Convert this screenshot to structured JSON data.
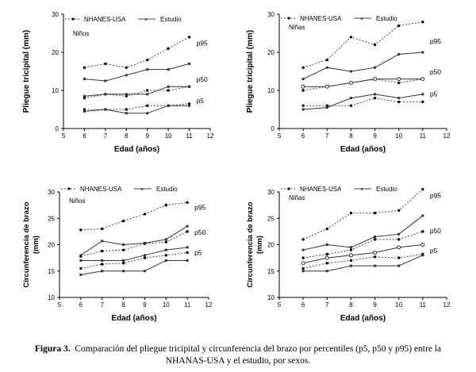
{
  "figure_caption": {
    "label": "Figura 3.",
    "text": "Comparación del pliegue tricipital y circunferencia del brazo por percentiles (p5, p50 y p95) entre la NHANAS-USA y el estudio, por sexos."
  },
  "chart_data": [
    {
      "type": "line",
      "group_label": "Niños",
      "ylabel": "Pliegue tricipital (mm)",
      "xlabel": "Edad (años)",
      "xlim": [
        5,
        12
      ],
      "ylim": [
        0,
        30
      ],
      "xticks": [
        "5",
        "6",
        "7",
        "8",
        "9",
        "10",
        "11",
        "12"
      ],
      "yticks": [
        "0",
        "10",
        "20",
        "30"
      ],
      "legend": [
        "NHANES-USA",
        "Estudio"
      ],
      "percentile_labels": [
        "p95",
        "p50",
        "p5"
      ],
      "x": [
        6,
        7,
        8,
        9,
        10,
        11
      ],
      "series": [
        {
          "name": "NHANES-USA",
          "percentile": "p95",
          "values": [
            16,
            17,
            16,
            18,
            21,
            24
          ]
        },
        {
          "name": "NHANES-USA",
          "percentile": "p50",
          "values": [
            8,
            9,
            8.5,
            10,
            10,
            11
          ]
        },
        {
          "name": "NHANES-USA",
          "percentile": "p5",
          "values": [
            5,
            5,
            5,
            6,
            6,
            6.5
          ]
        },
        {
          "name": "Estudio",
          "percentile": "p95",
          "values": [
            13,
            12.5,
            14,
            15.5,
            15.5,
            17
          ]
        },
        {
          "name": "Estudio",
          "percentile": "p50",
          "values": [
            8.5,
            9,
            9,
            9,
            11,
            11
          ]
        },
        {
          "name": "Estudio",
          "percentile": "p5",
          "values": [
            4.5,
            5,
            4,
            4,
            6,
            6
          ]
        }
      ]
    },
    {
      "type": "line",
      "group_label": "Niñas",
      "ylabel": "Pliegue tricipital (mm)",
      "xlabel": "Edad (años)",
      "xlim": [
        5,
        12
      ],
      "ylim": [
        0,
        30
      ],
      "xticks": [
        "5",
        "6",
        "7",
        "8",
        "9",
        "10",
        "11",
        "12"
      ],
      "yticks": [
        "0",
        "10",
        "20",
        "30"
      ],
      "legend": [
        "NHANES-USA",
        "Estudio"
      ],
      "percentile_labels": [
        "p95",
        "p50",
        "p5"
      ],
      "x": [
        6,
        7,
        8,
        9,
        10,
        11
      ],
      "series": [
        {
          "name": "NHANES-USA",
          "percentile": "p95",
          "values": [
            16,
            18,
            24,
            22,
            27,
            28
          ]
        },
        {
          "name": "NHANES-USA",
          "percentile": "p50",
          "values": [
            10,
            11,
            12,
            13,
            12,
            13
          ]
        },
        {
          "name": "NHANES-USA",
          "percentile": "p5",
          "values": [
            6,
            6,
            6,
            8,
            7,
            7
          ]
        },
        {
          "name": "Estudio",
          "percentile": "p95",
          "values": [
            13,
            16,
            15,
            16,
            19.5,
            20
          ]
        },
        {
          "name": "Estudio",
          "percentile": "p50",
          "values": [
            11,
            11,
            12,
            13,
            13,
            13
          ]
        },
        {
          "name": "Estudio",
          "percentile": "p5",
          "values": [
            5,
            5.5,
            8,
            9,
            8,
            9
          ]
        }
      ]
    },
    {
      "type": "line",
      "group_label": "Niños",
      "ylabel": "Circunferencia de brazo (mm)",
      "xlabel": "Edad (años)",
      "xlim": [
        5,
        12
      ],
      "ylim": [
        10,
        30
      ],
      "xticks": [
        "5",
        "6",
        "7",
        "8",
        "9",
        "10",
        "11",
        "12"
      ],
      "yticks": [
        "10",
        "15",
        "20",
        "25",
        "30"
      ],
      "legend": [
        "NHANES-USA",
        "Estudio"
      ],
      "percentile_labels": [
        "p95",
        "p50",
        "p5"
      ],
      "x": [
        6,
        7,
        8,
        9,
        10,
        11
      ],
      "series": [
        {
          "name": "NHANES-USA",
          "percentile": "p95",
          "values": [
            22.8,
            23,
            24.5,
            25.8,
            27.5,
            28
          ]
        },
        {
          "name": "NHANES-USA",
          "percentile": "p50",
          "values": [
            17.8,
            18.8,
            19,
            20.2,
            20.5,
            22.5
          ]
        },
        {
          "name": "NHANES-USA",
          "percentile": "p5",
          "values": [
            15.5,
            16.3,
            16.5,
            17.5,
            18,
            18.5
          ]
        },
        {
          "name": "Estudio",
          "percentile": "p95",
          "values": [
            18,
            20.7,
            20,
            20.3,
            21,
            23.5
          ]
        },
        {
          "name": "Estudio",
          "percentile": "p50",
          "values": [
            17,
            17,
            17,
            18,
            19,
            19.5
          ]
        },
        {
          "name": "Estudio",
          "percentile": "p5",
          "values": [
            14.3,
            15,
            15,
            15,
            17,
            17
          ]
        }
      ]
    },
    {
      "type": "line",
      "group_label": "Niñas",
      "ylabel": "Circunferencia de brazo (mm)",
      "xlabel": "Edad (años)",
      "xlim": [
        5,
        12
      ],
      "ylim": [
        10,
        30
      ],
      "xticks": [
        "5",
        "6",
        "7",
        "8",
        "9",
        "10",
        "11",
        "12"
      ],
      "yticks": [
        "10",
        "15",
        "20",
        "25",
        "30"
      ],
      "legend": [
        "NHANES-USA",
        "Estudio"
      ],
      "percentile_labels": [
        "p95",
        "p50",
        "p5"
      ],
      "x": [
        6,
        7,
        8,
        9,
        10,
        11
      ],
      "series": [
        {
          "name": "NHANES-USA",
          "percentile": "p95",
          "values": [
            21,
            23,
            26,
            26,
            26.5,
            30.5
          ]
        },
        {
          "name": "NHANES-USA",
          "percentile": "p50",
          "values": [
            17.5,
            18.2,
            19,
            21,
            21,
            22.5
          ]
        },
        {
          "name": "NHANES-USA",
          "percentile": "p5",
          "values": [
            15.5,
            16.5,
            17,
            17.7,
            17.5,
            18.2
          ]
        },
        {
          "name": "Estudio",
          "percentile": "p95",
          "values": [
            19,
            20,
            19.5,
            21.5,
            22,
            25.5
          ]
        },
        {
          "name": "Estudio",
          "percentile": "p50",
          "values": [
            16.5,
            17.5,
            18,
            18.5,
            19.5,
            20
          ]
        },
        {
          "name": "Estudio",
          "percentile": "p5",
          "values": [
            15,
            15,
            16,
            16,
            16,
            18
          ]
        }
      ]
    }
  ]
}
